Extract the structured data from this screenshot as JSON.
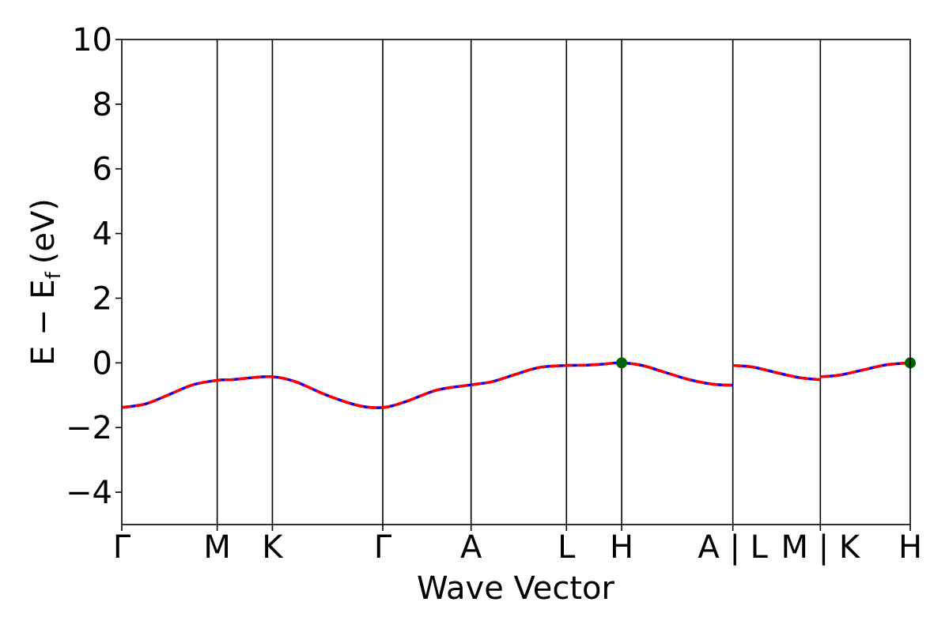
{
  "chart_data": {
    "type": "line",
    "title": "",
    "xlabel": "Wave Vector",
    "ylabel_main": "E − E",
    "ylabel_sub": "f",
    "ylabel_unit": "(eV)",
    "ylim": [
      -5,
      10
    ],
    "yticks": [
      -4,
      -2,
      0,
      2,
      4,
      6,
      8,
      10
    ],
    "ytick_labels": [
      "−4",
      "−2",
      "0",
      "2",
      "4",
      "6",
      "8",
      "10"
    ],
    "xlim": [
      0,
      1
    ],
    "grid": false,
    "legend": "none",
    "colors": {
      "band_solid": "#0000ff",
      "band_dashed": "#ff0000",
      "marker": "#006400",
      "axes": "#000000"
    },
    "high_symmetry_points": [
      {
        "label": "Γ",
        "x": 0.0
      },
      {
        "label": "M",
        "x": 0.121
      },
      {
        "label": "K",
        "x": 0.191
      },
      {
        "label": "Γ",
        "x": 0.331
      },
      {
        "label": "A",
        "x": 0.443
      },
      {
        "label": "L",
        "x": 0.564
      },
      {
        "label": "H",
        "x": 0.634
      },
      {
        "label": "A | L",
        "x": 0.775
      },
      {
        "label": "M | K",
        "x": 0.886
      },
      {
        "label": "H",
        "x": 1.0
      }
    ],
    "series": [
      {
        "style": "solid",
        "color": "#0000ff",
        "segments": [
          {
            "x": [
              0.0,
              0.03,
              0.06,
              0.09,
              0.121,
              0.14,
              0.16,
              0.191,
              0.22,
              0.26,
              0.3,
              0.331,
              0.36,
              0.4,
              0.443,
              0.47,
              0.5,
              0.53,
              0.564,
              0.59,
              0.61,
              0.634,
              0.66,
              0.69,
              0.72,
              0.75,
              0.775
            ],
            "y": [
              -1.38,
              -1.27,
              -0.98,
              -0.68,
              -0.54,
              -0.52,
              -0.47,
              -0.43,
              -0.58,
              -1.0,
              -1.32,
              -1.38,
              -1.2,
              -0.84,
              -0.68,
              -0.58,
              -0.35,
              -0.14,
              -0.08,
              -0.07,
              -0.04,
              0.0,
              -0.08,
              -0.3,
              -0.52,
              -0.66,
              -0.69
            ]
          },
          {
            "x": [
              0.775,
              0.8,
              0.83,
              0.86,
              0.886
            ],
            "y": [
              -0.08,
              -0.13,
              -0.3,
              -0.46,
              -0.52
            ]
          },
          {
            "x": [
              0.886,
              0.91,
              0.94,
              0.97,
              1.0
            ],
            "y": [
              -0.43,
              -0.38,
              -0.22,
              -0.06,
              0.0
            ]
          }
        ]
      },
      {
        "style": "dashed",
        "color": "#ff0000",
        "segments": [
          {
            "x": [
              0.0,
              0.03,
              0.06,
              0.09,
              0.121,
              0.14,
              0.16,
              0.191,
              0.22,
              0.26,
              0.3,
              0.331,
              0.36,
              0.4,
              0.443,
              0.47,
              0.5,
              0.53,
              0.564,
              0.59,
              0.61,
              0.634,
              0.66,
              0.69,
              0.72,
              0.75,
              0.775
            ],
            "y": [
              -1.38,
              -1.27,
              -0.98,
              -0.68,
              -0.54,
              -0.52,
              -0.47,
              -0.43,
              -0.58,
              -1.0,
              -1.32,
              -1.38,
              -1.2,
              -0.84,
              -0.68,
              -0.58,
              -0.35,
              -0.14,
              -0.08,
              -0.07,
              -0.04,
              0.0,
              -0.08,
              -0.3,
              -0.52,
              -0.66,
              -0.69
            ]
          },
          {
            "x": [
              0.775,
              0.8,
              0.83,
              0.86,
              0.886
            ],
            "y": [
              -0.08,
              -0.13,
              -0.3,
              -0.46,
              -0.52
            ]
          },
          {
            "x": [
              0.886,
              0.91,
              0.94,
              0.97,
              1.0
            ],
            "y": [
              -0.43,
              -0.38,
              -0.22,
              -0.06,
              0.0
            ]
          }
        ]
      }
    ],
    "markers": [
      {
        "x": 0.634,
        "y": 0.0
      },
      {
        "x": 1.0,
        "y": 0.0
      }
    ]
  }
}
